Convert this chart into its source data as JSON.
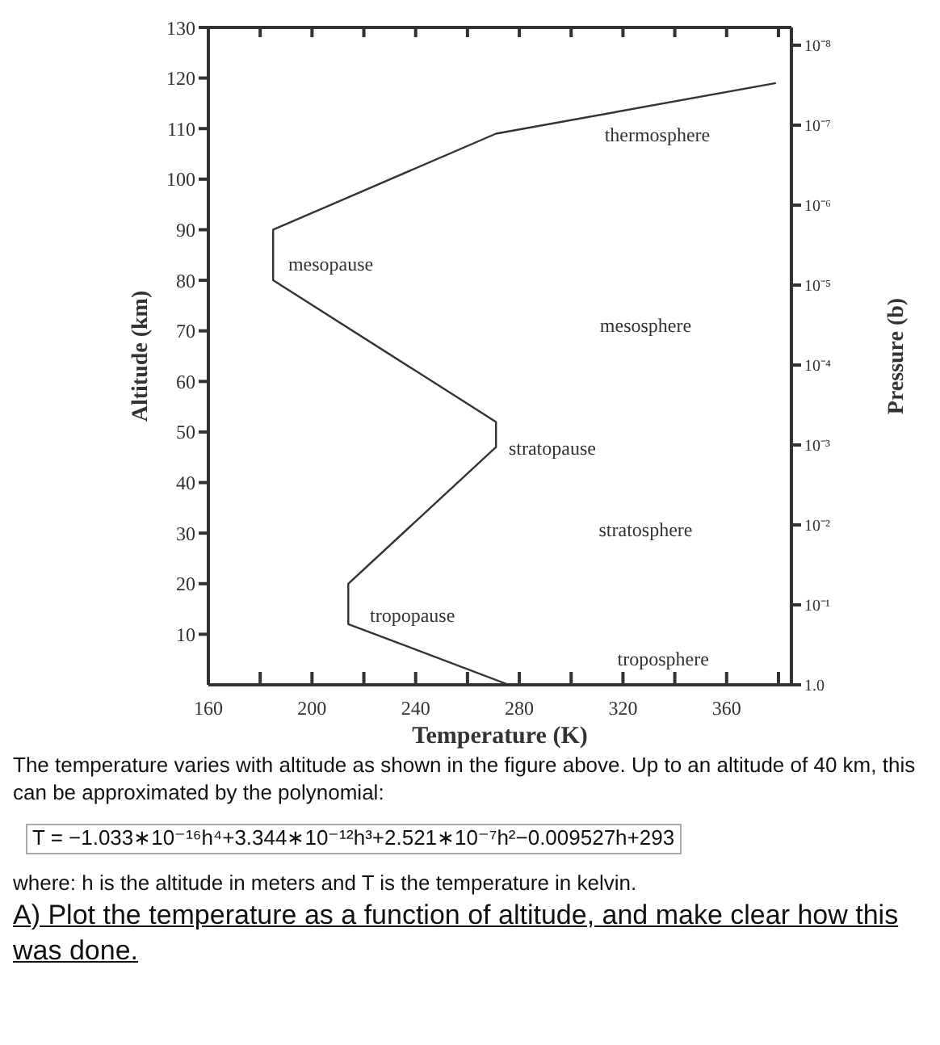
{
  "chart_data": {
    "type": "line",
    "xlabel": "Temperature (K)",
    "ylabel": "Altitude (km)",
    "y2label": "Pressure (b)",
    "x": [
      276,
      214,
      214,
      271,
      271,
      185,
      185,
      271,
      379
    ],
    "series": [
      {
        "color": "#333333",
        "values": [
          0,
          12,
          20,
          47,
          52,
          80,
          90,
          109,
          119
        ]
      }
    ],
    "xlim": [
      160,
      385
    ],
    "xticks": [
      160,
      {
        "value": 180,
        "label": null
      },
      200,
      {
        "value": 220,
        "label": null
      },
      240,
      {
        "value": 260,
        "label": null
      },
      280,
      {
        "value": 300,
        "label": null
      },
      320,
      {
        "value": 340,
        "label": null
      },
      360,
      {
        "value": 380,
        "label": null
      }
    ],
    "ylim": [
      0,
      130
    ],
    "yticks": [
      10,
      20,
      30,
      40,
      50,
      60,
      70,
      80,
      90,
      100,
      110,
      120,
      130
    ],
    "y2lim": [
      1,
      6e-09
    ],
    "log": "y2",
    "y2ticks": [
      {
        "value": 1,
        "label": "1.0"
      },
      {
        "value": 0.1,
        "label": "10⁻¹"
      },
      {
        "value": 0.01,
        "label": "10⁻²"
      },
      {
        "value": 0.001,
        "label": "10⁻³"
      },
      {
        "value": 0.0001,
        "label": "10⁻⁴"
      },
      {
        "value": 1e-05,
        "label": "10⁻⁵"
      },
      {
        "value": 1e-06,
        "label": "10⁻⁶"
      },
      {
        "value": 1e-07,
        "label": "10⁻⁷"
      },
      {
        "value": 1e-08,
        "label": "10⁻⁸"
      }
    ],
    "marker": "none",
    "line_style": "solid",
    "grid": false,
    "legend": false,
    "annotations": [
      "thermosphere",
      "mesopause",
      "mesosphere",
      "stratopause",
      "stratosphere",
      "tropopause",
      "troposphere",
      "The temperature varies with altitude as shown in the figure above. Up to an altitude of 40 km, this can be approximated by the polynomial:",
      "T = −1.033∗10⁻¹⁶h⁴+3.344∗10⁻¹²h³+2.521∗10⁻⁷h²−0.009527h+293",
      "where: h is the altitude in meters and T is the temperature in kelvin.",
      "A) Plot the temperature as a function of altitude, and make clear how this was done."
    ]
  }
}
